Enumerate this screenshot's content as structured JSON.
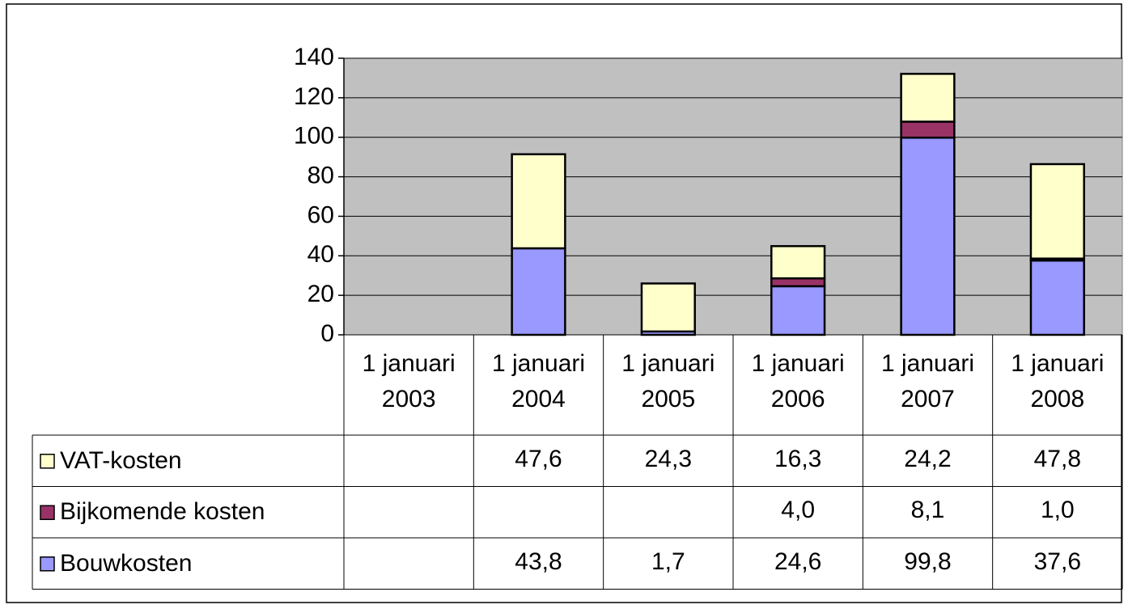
{
  "chart_data": {
    "type": "stacked_bar",
    "categories": [
      "1 januari 2003",
      "1 januari 2004",
      "1 januari 2005",
      "1 januari 2006",
      "1 januari 2007",
      "1 januari 2008"
    ],
    "series": [
      {
        "name": "Bouwkosten",
        "color": "#9999ff",
        "values": [
          null,
          43.8,
          1.7,
          24.6,
          99.8,
          37.6
        ],
        "value_labels": [
          null,
          "43,8",
          "1,7",
          "24,6",
          "99,8",
          "37,6"
        ]
      },
      {
        "name": "Bijkomende kosten",
        "color": "#993366",
        "values": [
          null,
          null,
          null,
          4.0,
          8.1,
          1.0
        ],
        "value_labels": [
          null,
          null,
          null,
          "4,0",
          "8,1",
          "1,0"
        ]
      },
      {
        "name": "VAT-kosten",
        "color": "#ffffcc",
        "values": [
          null,
          47.6,
          24.3,
          16.3,
          24.2,
          47.8
        ],
        "value_labels": [
          null,
          "47,6",
          "24,3",
          "16,3",
          "24,2",
          "47,8"
        ]
      }
    ],
    "ylim": [
      0,
      140
    ],
    "yticks": [
      0,
      20,
      40,
      60,
      80,
      100,
      120,
      140
    ],
    "grid": true,
    "plot_background": "#c0c0c0"
  }
}
